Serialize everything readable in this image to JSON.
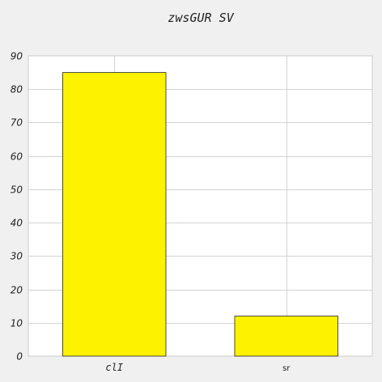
{
  "chart_data": {
    "type": "bar",
    "title": "zwsGUR SV",
    "xlabel": "",
    "ylabel": "",
    "categories": [
      "clI",
      "sr"
    ],
    "values": [
      85,
      12
    ],
    "ylim": [
      0,
      90
    ],
    "yticks": [
      0,
      10,
      20,
      30,
      40,
      50,
      60,
      70,
      80,
      90
    ],
    "grid": true,
    "colors": {
      "bar": "#fdf200",
      "bar_edge": "#222222",
      "plot_bg": "#ffffff",
      "page_bg": "#f0f0f0",
      "grid": "#d3d3d3",
      "axis": "#cccccc"
    }
  }
}
